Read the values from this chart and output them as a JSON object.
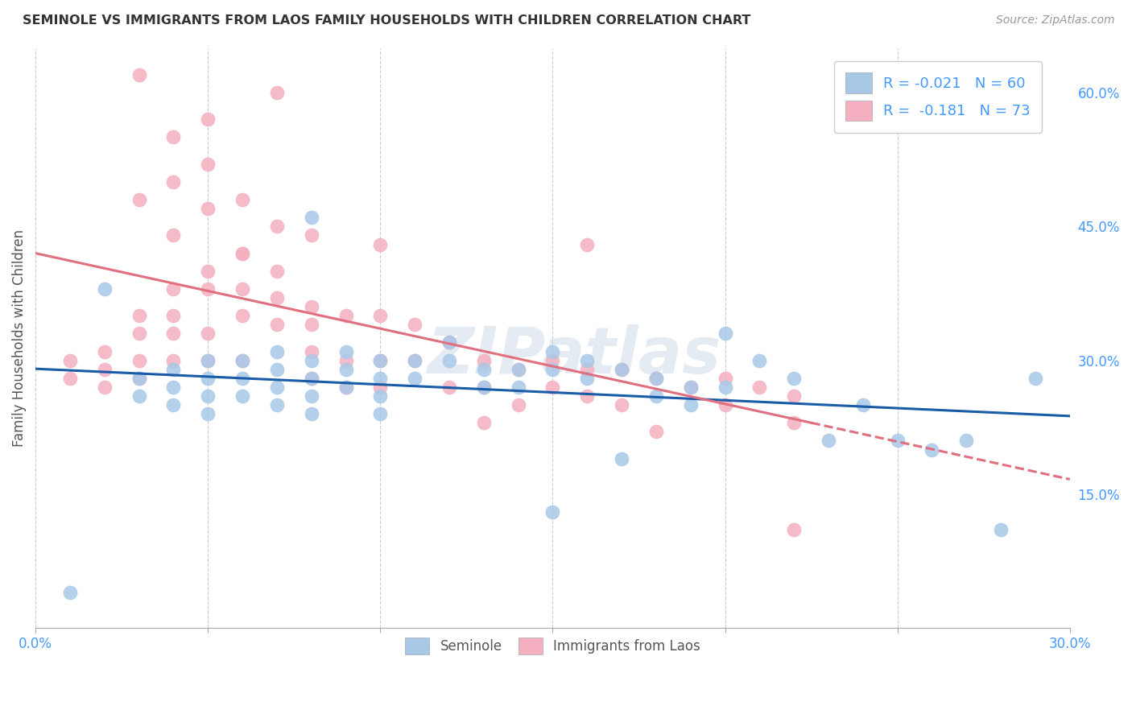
{
  "title": "SEMINOLE VS IMMIGRANTS FROM LAOS FAMILY HOUSEHOLDS WITH CHILDREN CORRELATION CHART",
  "source": "Source: ZipAtlas.com",
  "ylabel": "Family Households with Children",
  "xmin": 0.0,
  "xmax": 0.3,
  "ymin": 0.0,
  "ymax": 0.65,
  "seminole_color": "#a8c8e8",
  "laos_color": "#f4b0c0",
  "seminole_R": -0.021,
  "seminole_N": 60,
  "laos_R": -0.181,
  "laos_N": 73,
  "watermark": "ZIPatlas",
  "seminole_line_color": "#1a5ca8",
  "laos_line_color": "#e07080",
  "seminole_scatter_x": [
    0.01,
    0.02,
    0.03,
    0.03,
    0.04,
    0.04,
    0.04,
    0.05,
    0.05,
    0.05,
    0.05,
    0.06,
    0.06,
    0.06,
    0.07,
    0.07,
    0.07,
    0.07,
    0.08,
    0.08,
    0.08,
    0.08,
    0.09,
    0.09,
    0.09,
    0.1,
    0.1,
    0.1,
    0.1,
    0.11,
    0.11,
    0.12,
    0.12,
    0.13,
    0.13,
    0.14,
    0.14,
    0.15,
    0.15,
    0.15,
    0.16,
    0.16,
    0.17,
    0.17,
    0.18,
    0.18,
    0.19,
    0.19,
    0.2,
    0.2,
    0.21,
    0.22,
    0.23,
    0.24,
    0.25,
    0.26,
    0.27,
    0.28,
    0.08,
    0.29
  ],
  "seminole_scatter_y": [
    0.04,
    0.38,
    0.28,
    0.26,
    0.29,
    0.27,
    0.25,
    0.3,
    0.28,
    0.26,
    0.24,
    0.3,
    0.28,
    0.26,
    0.31,
    0.29,
    0.27,
    0.25,
    0.3,
    0.28,
    0.26,
    0.24,
    0.31,
    0.29,
    0.27,
    0.3,
    0.28,
    0.26,
    0.24,
    0.3,
    0.28,
    0.32,
    0.3,
    0.29,
    0.27,
    0.29,
    0.27,
    0.31,
    0.29,
    0.13,
    0.3,
    0.28,
    0.29,
    0.19,
    0.28,
    0.26,
    0.27,
    0.25,
    0.33,
    0.27,
    0.3,
    0.28,
    0.21,
    0.25,
    0.21,
    0.2,
    0.21,
    0.11,
    0.46,
    0.28
  ],
  "laos_scatter_x": [
    0.01,
    0.01,
    0.02,
    0.02,
    0.02,
    0.03,
    0.03,
    0.03,
    0.03,
    0.04,
    0.04,
    0.04,
    0.04,
    0.05,
    0.05,
    0.05,
    0.05,
    0.06,
    0.06,
    0.06,
    0.06,
    0.07,
    0.07,
    0.07,
    0.08,
    0.08,
    0.08,
    0.08,
    0.09,
    0.09,
    0.09,
    0.1,
    0.1,
    0.1,
    0.11,
    0.11,
    0.12,
    0.12,
    0.13,
    0.13,
    0.13,
    0.14,
    0.14,
    0.15,
    0.15,
    0.16,
    0.16,
    0.17,
    0.17,
    0.18,
    0.18,
    0.19,
    0.2,
    0.2,
    0.21,
    0.22,
    0.22,
    0.03,
    0.05,
    0.04,
    0.06,
    0.04,
    0.07,
    0.07,
    0.05,
    0.08,
    0.1,
    0.22,
    0.16,
    0.03,
    0.04,
    0.05,
    0.06
  ],
  "laos_scatter_y": [
    0.3,
    0.28,
    0.31,
    0.29,
    0.27,
    0.35,
    0.33,
    0.3,
    0.28,
    0.38,
    0.35,
    0.33,
    0.3,
    0.4,
    0.38,
    0.33,
    0.3,
    0.42,
    0.38,
    0.35,
    0.3,
    0.4,
    0.37,
    0.34,
    0.36,
    0.34,
    0.31,
    0.28,
    0.35,
    0.3,
    0.27,
    0.35,
    0.3,
    0.27,
    0.34,
    0.3,
    0.32,
    0.27,
    0.3,
    0.27,
    0.23,
    0.29,
    0.25,
    0.3,
    0.27,
    0.29,
    0.26,
    0.29,
    0.25,
    0.28,
    0.22,
    0.27,
    0.28,
    0.25,
    0.27,
    0.26,
    0.23,
    0.48,
    0.47,
    0.44,
    0.42,
    0.55,
    0.6,
    0.45,
    0.57,
    0.44,
    0.43,
    0.11,
    0.43,
    0.62,
    0.5,
    0.52,
    0.48
  ]
}
